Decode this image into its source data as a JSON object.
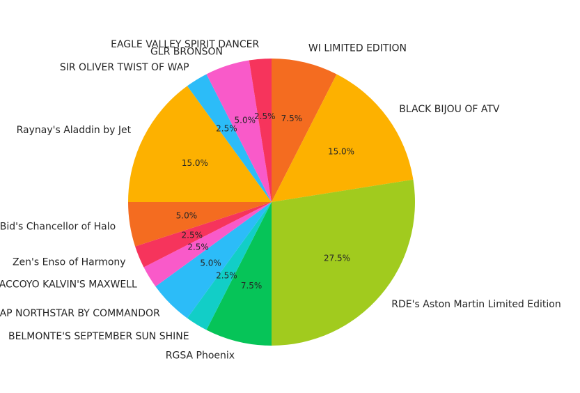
{
  "chart_data": {
    "type": "pie",
    "start_angle_deg": 90,
    "direction": "clockwise",
    "slices": [
      {
        "label": "WI LIMITED EDITION",
        "value": 7.5,
        "pct_label": "7.5%",
        "color": "#f46c20"
      },
      {
        "label": "BLACK BIJOU OF ATV",
        "value": 15.0,
        "pct_label": "15.0%",
        "color": "#fdb100"
      },
      {
        "label": "RDE's Aston Martin Limited Edition",
        "value": 27.5,
        "pct_label": "27.5%",
        "color": "#a1cb1e"
      },
      {
        "label": "RGSA Phoenix",
        "value": 7.5,
        "pct_label": "7.5%",
        "color": "#06c458"
      },
      {
        "label": "BELMONTE'S SEPTEMBER SUN SHINE",
        "value": 2.5,
        "pct_label": "2.5%",
        "color": "#12cec7"
      },
      {
        "label": "WAP NORTHSTAR BY COMMANDOR",
        "value": 5.0,
        "pct_label": "5.0%",
        "color": "#2cbcf8"
      },
      {
        "label": "RAF ACCOYO KALVIN'S MAXWELL",
        "value": 2.5,
        "pct_label": "2.5%",
        "color": "#f95ac9"
      },
      {
        "label": "Zen's Enso of Harmony",
        "value": 2.5,
        "pct_label": "2.5%",
        "color": "#f6345c"
      },
      {
        "label": "Bid's Chancellor of Halo",
        "value": 5.0,
        "pct_label": "5.0%",
        "color": "#f46c20"
      },
      {
        "label": "Raynay's Aladdin by Jet",
        "value": 15.0,
        "pct_label": "15.0%",
        "color": "#fdb100"
      },
      {
        "label": "SIR OLIVER TWIST OF WAP",
        "value": 2.5,
        "pct_label": "2.5%",
        "color": "#2cbcf8"
      },
      {
        "label": "GLR BRONSON",
        "value": 5.0,
        "pct_label": "5.0%",
        "color": "#f95ac9"
      },
      {
        "label": "EAGLE VALLEY SPIRIT DANCER",
        "value": 2.5,
        "pct_label": "2.5%",
        "color": "#f6345c"
      }
    ]
  }
}
